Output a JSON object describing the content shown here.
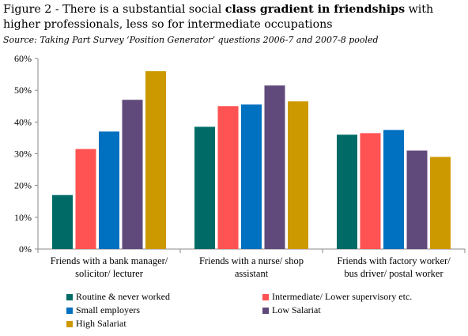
{
  "title": {
    "prefix": "Figure 2 - There is a substantial social ",
    "bold": "class gradient in friendships",
    "suffix": " with higher professionals, less so for intermediate occupations"
  },
  "source": "Source:  Taking Part Survey ‘Position Generator’ questions 2006-7 and 2007-8 pooled",
  "chart_data": {
    "type": "bar",
    "categories": [
      [
        "Friends with a bank manager/",
        "solicitor/ lecturer"
      ],
      [
        "Friends with a nurse/ shop",
        "assistant"
      ],
      [
        "Friends with factory worker/",
        "bus driver/ postal worker"
      ]
    ],
    "series": [
      {
        "name": "Routine & never worked",
        "color": "#006b66",
        "values": [
          17,
          38.5,
          36
        ]
      },
      {
        "name": "Intermediate/ Lower supervisory etc.",
        "color": "#ff5252",
        "values": [
          31.5,
          45,
          36.5
        ]
      },
      {
        "name": "Small employers",
        "color": "#0070c0",
        "values": [
          37,
          45.5,
          37.5
        ]
      },
      {
        "name": "Low Salariat",
        "color": "#604a7b",
        "values": [
          47,
          51.5,
          31
        ]
      },
      {
        "name": "High Salariat",
        "color": "#cc9900",
        "values": [
          56,
          46.5,
          29
        ]
      }
    ],
    "yticks": [
      "0%",
      "10%",
      "20%",
      "30%",
      "40%",
      "50%",
      "60%"
    ],
    "ylim": [
      0,
      60
    ],
    "grid": false,
    "legend_position": "bottom"
  }
}
